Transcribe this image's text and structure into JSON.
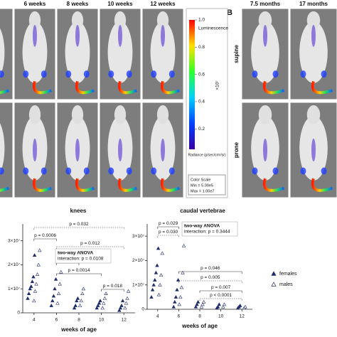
{
  "panel_a": {
    "columns": [
      "6 weeks",
      "8 weeks",
      "10 weeks",
      "12 weeks"
    ],
    "colorbar": {
      "title": "Luminescence",
      "unit": "×10⁷",
      "label": "Radiance (p/sec/cm²/sr)",
      "scale_title": "Color Scale",
      "min": "Min = 5.00e5",
      "max": "Max = 1.00e7",
      "lim": [
        0.05,
        1
      ],
      "ticks": [
        {
          "value": 1,
          "label": "1.0"
        },
        0.8,
        0.6,
        0.4,
        0.2
      ]
    }
  },
  "panel_b": {
    "label": "B",
    "columns": [
      "7.5 months",
      "17 months"
    ],
    "rows": [
      "supine",
      "prone"
    ]
  },
  "chart_data": [
    {
      "type": "scatter",
      "title": "knees",
      "xlabel": "weeks of age",
      "xlim": [
        3,
        13
      ],
      "xticks": [
        4,
        6,
        8,
        10,
        12
      ],
      "ylim": [
        0,
        37000000.0
      ],
      "yticks": [
        0,
        {
          "value": 10000000.0,
          "label": "1×10⁷"
        },
        {
          "value": 20000000.0,
          "label": "2×10⁷"
        },
        {
          "value": 30000000.0,
          "label": "3×10⁷"
        }
      ],
      "box": [
        "two-way ANOVA",
        "interaction: p = 0.0108"
      ],
      "annotations": [
        {
          "text": "p = 0.032",
          "from": 4,
          "to": 12,
          "dotted": true
        },
        {
          "text": "p = 0.0006",
          "from": 4,
          "to": 6,
          "dotted": false
        },
        {
          "text": "p = 0.012",
          "from": 6,
          "to": 12,
          "dotted": true
        },
        {
          "text": "p = 0.038",
          "from": 6,
          "to": 8,
          "dotted": false
        },
        {
          "text": "p = 0.0014",
          "from": 6,
          "to": 10,
          "dotted": false
        },
        {
          "text": "p = 0.018",
          "from": 10,
          "to": 12,
          "dotted": false
        }
      ],
      "series": [
        {
          "color": "#1f2d6b",
          "marker": "filled",
          "x": [
            4,
            4,
            4,
            4,
            4,
            4,
            4,
            6,
            6,
            6,
            6,
            6,
            8,
            8,
            8,
            8,
            10,
            10,
            10,
            10,
            12,
            12,
            12,
            12
          ],
          "values": [
            6000000.0,
            8000000.0,
            10000000.0,
            11000000.0,
            13000000.0,
            15000000.0,
            24000000.0,
            3000000.0,
            5000000.0,
            7000000.0,
            10000000.0,
            14000000.0,
            2000000.0,
            3000000.0,
            5000000.0,
            6000000.0,
            2000000.0,
            3000000.0,
            4000000.0,
            5000000.0,
            1000000.0,
            2000000.0,
            3000000.0,
            5000000.0
          ]
        },
        {
          "color": "#1f2d6b",
          "marker": "open",
          "x": [
            4,
            4,
            4,
            4,
            4,
            4,
            6,
            6,
            6,
            6,
            8,
            8,
            8,
            8,
            10,
            10,
            10,
            10,
            12,
            12,
            12,
            12
          ],
          "values": [
            5000000.0,
            9000000.0,
            12000000.0,
            16000000.0,
            20000000.0,
            26000000.0,
            4000000.0,
            8000000.0,
            12000000.0,
            17000000.0,
            3000000.0,
            5000000.0,
            8000000.0,
            10000000.0,
            2000000.0,
            4000000.0,
            6000000.0,
            8000000.0,
            2000000.0,
            4000000.0,
            6000000.0,
            9000000.0
          ]
        }
      ]
    },
    {
      "type": "scatter",
      "title": "caudal vertebrae",
      "xlabel": "weeks of age",
      "xlim": [
        3,
        13
      ],
      "xticks": [
        4,
        6,
        8,
        10,
        12
      ],
      "ylim": [
        0,
        35000000.0
      ],
      "yticks": [
        0,
        {
          "value": 10000000.0,
          "label": "1×10⁷"
        },
        {
          "value": 20000000.0,
          "label": "2×10⁷"
        },
        {
          "value": 30000000.0,
          "label": "3×10⁷"
        }
      ],
      "box": [
        "two-way ANOVA",
        "interaction: p = 0.3444"
      ],
      "annotations": [
        {
          "text": "p = 0.029",
          "from": 4,
          "to": 6,
          "dotted": false
        },
        {
          "text": "p = 0.030",
          "from": 4,
          "to": 6,
          "dotted": true
        },
        {
          "text": "p = 0.046",
          "from": 6,
          "to": 12,
          "dotted": false
        },
        {
          "text": "p = 0.005",
          "from": 6,
          "to": 12,
          "dotted": true
        },
        {
          "text": "p = 0.007",
          "from": 8,
          "to": 12,
          "dotted": false
        },
        {
          "text": "p < 0.0001",
          "from": 8,
          "to": 12,
          "dotted": true
        }
      ],
      "series": [
        {
          "name": "females",
          "color": "#1f2d6b",
          "marker": "filled",
          "x": [
            4,
            4,
            4,
            4,
            4,
            4,
            4,
            6,
            6,
            6,
            6,
            6,
            8,
            8,
            8,
            10,
            10,
            10,
            12,
            12,
            12
          ],
          "values": [
            5000000.0,
            8000000.0,
            10000000.0,
            12000000.0,
            15000000.0,
            18000000.0,
            25000000.0,
            1000000.0,
            3000000.0,
            5000000.0,
            8000000.0,
            12000000.0,
            1000000.0,
            2000000.0,
            3000000.0,
            500000.0,
            1000000.0,
            2000000.0,
            500000.0,
            1000000.0,
            1500000.0
          ]
        },
        {
          "name": "males",
          "color": "#1f2d6b",
          "marker": "open",
          "x": [
            4,
            4,
            4,
            4,
            6,
            6,
            6,
            6,
            6,
            8,
            8,
            8,
            10,
            10,
            12,
            12
          ],
          "values": [
            6000000.0,
            10000000.0,
            14000000.0,
            23000000.0,
            2000000.0,
            5000000.0,
            9000000.0,
            15000000.0,
            26000000.0,
            1000000.0,
            2000000.0,
            3000000.0,
            1000000.0,
            2000000.0,
            500000.0,
            1000000.0
          ]
        }
      ]
    }
  ]
}
